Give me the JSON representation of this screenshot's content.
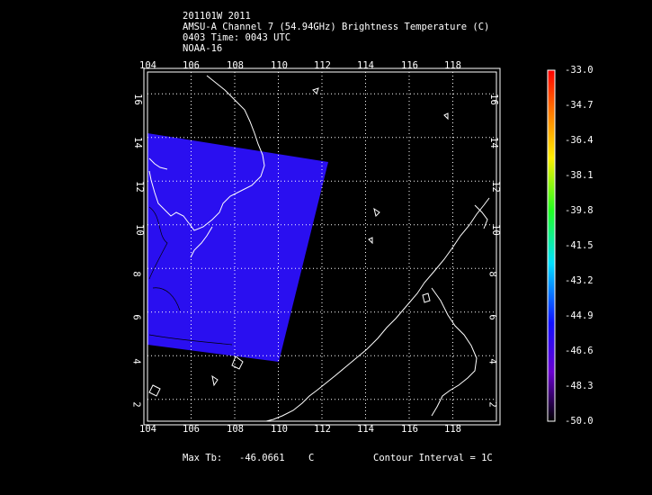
{
  "header": {
    "line1": "201101W 2011",
    "line2": "AMSU-A Channel 7 (54.94GHz) Brightness Temperature (C)",
    "line3": "0403 Time: 0043 UTC",
    "line4": "NOAA-16"
  },
  "map": {
    "lon_ticks": [
      "104",
      "106",
      "108",
      "110",
      "112",
      "114",
      "116",
      "118"
    ],
    "lat_ticks": [
      "2",
      "4",
      "6",
      "8",
      "10",
      "12",
      "14",
      "16"
    ],
    "lon_range": [
      104,
      120
    ],
    "lat_range": [
      1,
      17
    ],
    "swath_color": "#2a0ff0",
    "grid": "dotted"
  },
  "colorbar": {
    "labels": [
      "-33.0",
      "-34.7",
      "-36.4",
      "-38.1",
      "-39.8",
      "-41.5",
      "-43.2",
      "-44.9",
      "-46.6",
      "-48.3",
      "-50.0"
    ],
    "range": [
      -50.0,
      -33.0
    ]
  },
  "footer": {
    "max_tb_label": "Max Tb:",
    "max_tb_value": "-46.0661",
    "max_tb_unit": "C",
    "contour_interval": "Contour Interval = 1C"
  }
}
